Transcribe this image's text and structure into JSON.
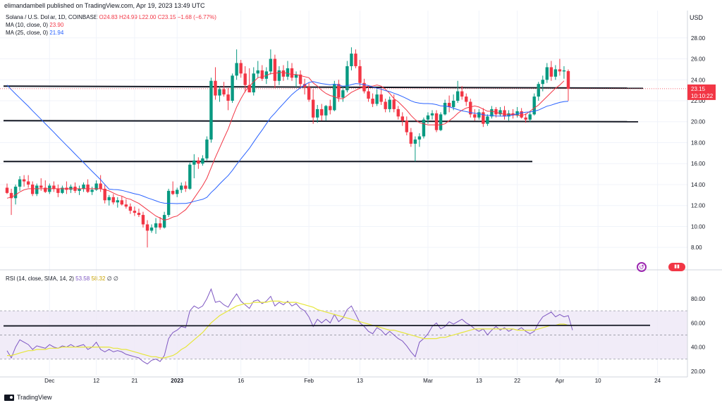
{
  "header": {
    "attribution": "elimandambell published on TradingView.com, Apr 19, 2023 13:49 UTC"
  },
  "legend": {
    "symbol": "Solana / U.S. Dollar, 1D, COINBASE",
    "ohlc": "O24.83 H24.99 L22.00 C23.15 −1.68 (−6.77%)",
    "ma10_label": "MA (10, close, 0)",
    "ma10_value": "23.90",
    "ma25_label": "MA (25, close, 0)",
    "ma25_value": "21.94",
    "rsi_label": "RSI (14, close, SMA, 14, 2)",
    "rsi_value": "53.58",
    "rsi_ma_value": "58.32",
    "rsi_extra": "∅ ∅"
  },
  "footer": {
    "brand": "TradingView"
  },
  "icons": {
    "replay": "replay-icon",
    "flag": "flag-icon"
  },
  "colors": {
    "up": "#089981",
    "down": "#f23645",
    "ma10": "#f23645",
    "ma25": "#2962ff",
    "rsi": "#7e57c2",
    "rsi_ma": "#e6e63a",
    "rsi_band": "#ede7f6"
  },
  "chart_data": [
    {
      "type": "candlestick",
      "currency_label": "USD",
      "price_axis_ticks": [
        "28.00",
        "26.00",
        "24.00",
        "22.00",
        "20.00",
        "18.00",
        "16.00",
        "14.00",
        "12.00",
        "10.00",
        "8.00"
      ],
      "ylim": [
        6.6,
        29.6
      ],
      "last_price": "23.15",
      "countdown": "10:10:22",
      "x_ticks": [
        {
          "label": "Dec",
          "i": 10
        },
        {
          "label": "12",
          "i": 21
        },
        {
          "label": "21",
          "i": 30
        },
        {
          "label": "2023",
          "i": 40
        },
        {
          "label": "16",
          "i": 55
        },
        {
          "label": "Feb",
          "i": 71
        },
        {
          "label": "13",
          "i": 83
        },
        {
          "label": "Mar",
          "i": 99
        },
        {
          "label": "13",
          "i": 111
        },
        {
          "label": "22",
          "i": 120
        },
        {
          "label": "Apr",
          "i": 130
        },
        {
          "label": "10",
          "i": 139
        },
        {
          "label": "24",
          "i": 153
        }
      ],
      "candles": [
        [
          13.7,
          14.1,
          13.1,
          13.2
        ],
        [
          13.2,
          13.6,
          11.1,
          12.7
        ],
        [
          12.7,
          14.0,
          12.1,
          13.8
        ],
        [
          13.8,
          14.8,
          13.4,
          14.5
        ],
        [
          14.5,
          14.9,
          13.8,
          14.3
        ],
        [
          14.3,
          14.9,
          13.7,
          14.0
        ],
        [
          14.0,
          14.3,
          12.9,
          13.1
        ],
        [
          13.1,
          14.1,
          12.9,
          13.9
        ],
        [
          13.9,
          14.6,
          13.4,
          13.7
        ],
        [
          13.7,
          14.4,
          13.2,
          13.3
        ],
        [
          13.3,
          14.1,
          13.1,
          13.9
        ],
        [
          13.9,
          14.3,
          13.3,
          13.6
        ],
        [
          13.6,
          14.0,
          12.8,
          13.2
        ],
        [
          13.2,
          13.9,
          13.1,
          13.7
        ],
        [
          13.7,
          14.3,
          13.1,
          13.5
        ],
        [
          13.5,
          14.0,
          13.2,
          13.8
        ],
        [
          13.8,
          14.2,
          13.2,
          13.4
        ],
        [
          13.4,
          13.9,
          13.0,
          13.6
        ],
        [
          13.6,
          14.2,
          13.3,
          14.0
        ],
        [
          14.0,
          14.5,
          13.2,
          13.3
        ],
        [
          13.3,
          13.8,
          13.0,
          13.5
        ],
        [
          13.5,
          14.4,
          13.4,
          14.1
        ],
        [
          14.1,
          14.9,
          13.3,
          13.6
        ],
        [
          13.6,
          14.0,
          12.2,
          12.5
        ],
        [
          12.5,
          13.0,
          12.0,
          12.8
        ],
        [
          12.8,
          13.1,
          12.1,
          12.3
        ],
        [
          12.3,
          12.8,
          11.8,
          12.5
        ],
        [
          12.5,
          12.9,
          12.0,
          12.1
        ],
        [
          12.1,
          12.6,
          11.7,
          11.9
        ],
        [
          11.9,
          12.2,
          11.2,
          11.5
        ],
        [
          11.5,
          11.9,
          11.0,
          11.3
        ],
        [
          11.3,
          11.7,
          10.9,
          11.1
        ],
        [
          11.1,
          11.4,
          9.9,
          10.2
        ],
        [
          10.2,
          10.6,
          8.0,
          9.6
        ],
        [
          9.6,
          10.2,
          9.4,
          9.9
        ],
        [
          9.9,
          10.8,
          9.3,
          10.3
        ],
        [
          10.3,
          10.9,
          9.7,
          9.9
        ],
        [
          9.9,
          11.4,
          9.8,
          11.1
        ],
        [
          11.1,
          13.6,
          10.9,
          13.4
        ],
        [
          13.4,
          14.3,
          13.0,
          13.1
        ],
        [
          13.1,
          13.7,
          12.8,
          13.5
        ],
        [
          13.5,
          14.2,
          13.2,
          13.9
        ],
        [
          13.9,
          14.3,
          13.3,
          13.6
        ],
        [
          13.6,
          16.1,
          13.5,
          15.9
        ],
        [
          15.9,
          16.9,
          14.6,
          16.3
        ],
        [
          16.3,
          16.6,
          15.5,
          16.0
        ],
        [
          16.0,
          16.8,
          15.8,
          16.5
        ],
        [
          16.5,
          18.6,
          16.3,
          18.3
        ],
        [
          18.3,
          24.2,
          18.0,
          23.9
        ],
        [
          23.9,
          25.2,
          22.1,
          22.5
        ],
        [
          22.5,
          23.4,
          21.9,
          23.1
        ],
        [
          23.1,
          23.8,
          22.4,
          22.6
        ],
        [
          22.6,
          23.2,
          21.1,
          22.0
        ],
        [
          22.0,
          24.6,
          21.8,
          24.4
        ],
        [
          24.4,
          26.9,
          24.0,
          25.6
        ],
        [
          25.6,
          25.9,
          24.2,
          24.6
        ],
        [
          24.6,
          25.3,
          22.8,
          23.5
        ],
        [
          23.5,
          25.1,
          22.9,
          22.8
        ],
        [
          22.8,
          25.2,
          22.5,
          24.6
        ],
        [
          24.6,
          25.8,
          24.2,
          24.9
        ],
        [
          24.9,
          25.4,
          23.9,
          24.1
        ],
        [
          24.1,
          25.2,
          23.6,
          24.8
        ],
        [
          24.8,
          26.9,
          24.5,
          26.0
        ],
        [
          26.0,
          26.4,
          23.2,
          23.9
        ],
        [
          23.9,
          25.3,
          23.5,
          24.9
        ],
        [
          24.9,
          25.4,
          23.9,
          24.3
        ],
        [
          24.3,
          25.8,
          24.0,
          25.1
        ],
        [
          25.1,
          25.6,
          23.9,
          24.2
        ],
        [
          24.2,
          24.8,
          23.3,
          24.5
        ],
        [
          24.5,
          24.9,
          23.2,
          23.6
        ],
        [
          23.6,
          24.1,
          22.6,
          23.3
        ],
        [
          23.3,
          23.7,
          21.9,
          22.1
        ],
        [
          22.1,
          23.1,
          19.8,
          20.4
        ],
        [
          20.4,
          21.6,
          19.9,
          21.2
        ],
        [
          21.2,
          21.7,
          20.1,
          20.6
        ],
        [
          20.6,
          21.6,
          20.1,
          21.5
        ],
        [
          21.5,
          22.1,
          20.7,
          21.1
        ],
        [
          21.1,
          23.9,
          21.0,
          23.6
        ],
        [
          23.6,
          24.0,
          21.9,
          22.3
        ],
        [
          22.3,
          23.4,
          21.9,
          23.0
        ],
        [
          23.0,
          25.8,
          22.8,
          25.3
        ],
        [
          25.3,
          27.1,
          24.9,
          26.5
        ],
        [
          26.5,
          26.9,
          25.1,
          25.3
        ],
        [
          25.3,
          25.9,
          23.4,
          23.7
        ],
        [
          23.7,
          24.1,
          22.7,
          22.9
        ],
        [
          22.9,
          23.4,
          21.9,
          22.2
        ],
        [
          22.2,
          22.7,
          21.4,
          21.7
        ],
        [
          21.7,
          23.1,
          21.5,
          22.6
        ],
        [
          22.6,
          23.2,
          21.6,
          21.9
        ],
        [
          21.9,
          22.2,
          20.9,
          21.2
        ],
        [
          21.2,
          22.4,
          20.9,
          22.1
        ],
        [
          22.1,
          22.6,
          20.9,
          21.2
        ],
        [
          21.2,
          21.5,
          20.2,
          20.5
        ],
        [
          20.5,
          20.9,
          19.6,
          20.1
        ],
        [
          20.1,
          20.5,
          18.7,
          19.0
        ],
        [
          19.0,
          19.4,
          17.6,
          17.9
        ],
        [
          17.9,
          18.6,
          16.2,
          18.3
        ],
        [
          18.3,
          18.9,
          17.6,
          18.6
        ],
        [
          18.6,
          20.4,
          18.4,
          20.2
        ],
        [
          20.2,
          20.9,
          19.8,
          20.6
        ],
        [
          20.6,
          21.1,
          20.2,
          20.8
        ],
        [
          20.8,
          21.1,
          19.0,
          19.2
        ],
        [
          19.2,
          20.9,
          19.1,
          20.7
        ],
        [
          20.7,
          22.1,
          20.6,
          21.8
        ],
        [
          21.8,
          22.5,
          20.9,
          21.4
        ],
        [
          21.4,
          22.6,
          21.1,
          22.0
        ],
        [
          22.0,
          23.9,
          21.8,
          22.9
        ],
        [
          22.9,
          23.4,
          22.1,
          22.4
        ],
        [
          22.4,
          22.7,
          21.5,
          21.9
        ],
        [
          21.9,
          22.2,
          20.4,
          20.7
        ],
        [
          20.7,
          21.2,
          20.1,
          20.4
        ],
        [
          20.4,
          21.2,
          20.2,
          20.9
        ],
        [
          20.9,
          21.3,
          19.5,
          19.8
        ],
        [
          19.8,
          20.7,
          19.6,
          20.5
        ],
        [
          20.5,
          21.5,
          20.3,
          21.2
        ],
        [
          21.2,
          21.4,
          20.4,
          20.7
        ],
        [
          20.7,
          21.4,
          20.5,
          21.1
        ],
        [
          21.1,
          21.5,
          20.2,
          20.5
        ],
        [
          20.5,
          21.1,
          20.1,
          20.8
        ],
        [
          20.8,
          21.2,
          20.3,
          20.6
        ],
        [
          20.6,
          21.4,
          20.4,
          21.0
        ],
        [
          21.0,
          21.3,
          20.3,
          20.4
        ],
        [
          20.4,
          20.8,
          19.9,
          20.2
        ],
        [
          20.2,
          20.9,
          20.0,
          20.7
        ],
        [
          20.7,
          22.7,
          20.6,
          22.4
        ],
        [
          22.4,
          23.8,
          22.0,
          23.6
        ],
        [
          23.6,
          24.4,
          22.9,
          24.0
        ],
        [
          24.0,
          25.6,
          23.7,
          25.2
        ],
        [
          25.2,
          25.8,
          23.9,
          24.3
        ],
        [
          24.3,
          25.4,
          24.0,
          25.0
        ],
        [
          25.0,
          26.0,
          24.4,
          24.8
        ],
        [
          24.8,
          25.3,
          24.1,
          24.9
        ],
        [
          24.83,
          24.99,
          22.0,
          23.15
        ]
      ],
      "ma10": [
        12.7,
        12.8,
        13.0,
        13.3,
        13.5,
        13.6,
        13.6,
        13.6,
        13.6,
        13.6,
        13.6,
        13.6,
        13.6,
        13.6,
        13.6,
        13.6,
        13.6,
        13.6,
        13.6,
        13.6,
        13.6,
        13.6,
        13.6,
        13.5,
        13.4,
        13.2,
        13.0,
        12.9,
        12.7,
        12.6,
        12.4,
        12.2,
        11.9,
        11.6,
        11.3,
        11.0,
        10.8,
        10.6,
        10.7,
        10.9,
        11.0,
        11.3,
        11.6,
        12.1,
        12.7,
        13.3,
        13.9,
        14.6,
        15.6,
        16.6,
        17.5,
        18.4,
        19.3,
        20.4,
        21.4,
        22.2,
        22.9,
        23.4,
        23.8,
        24.2,
        24.3,
        24.4,
        24.6,
        24.6,
        24.7,
        24.7,
        24.6,
        24.5,
        24.5,
        24.4,
        24.3,
        24.2,
        23.7,
        23.4,
        23.0,
        22.7,
        22.5,
        22.4,
        22.2,
        22.2,
        22.5,
        22.8,
        23.0,
        23.2,
        23.3,
        23.4,
        23.4,
        23.5,
        23.4,
        23.1,
        22.7,
        22.2,
        21.9,
        21.5,
        21.1,
        20.6,
        20.2,
        19.9,
        19.8,
        19.7,
        19.7,
        19.7,
        19.7,
        19.8,
        20.1,
        20.4,
        20.8,
        21.1,
        21.3,
        21.4,
        21.5,
        21.4,
        21.2,
        21.0,
        21.0,
        20.9,
        20.8,
        20.7,
        20.7,
        20.7,
        20.6,
        20.6,
        20.7,
        21.0,
        21.3,
        21.6,
        22.0,
        22.4,
        22.8,
        23.2,
        23.5,
        23.9
      ]
    },
    {
      "type": "line",
      "name": "RSI",
      "axis_ticks": [
        "80.00",
        "60.00",
        "40.00",
        "20.00"
      ],
      "ylim": [
        17,
        94
      ],
      "band": [
        30,
        70
      ],
      "midline": 50,
      "rsi": [
        37,
        31,
        40,
        46,
        44,
        42,
        38,
        41,
        40,
        39,
        42,
        40,
        39,
        41,
        40,
        42,
        40,
        41,
        42,
        38,
        40,
        44,
        38,
        36,
        38,
        36,
        37,
        36,
        34,
        33,
        32,
        31,
        28,
        26,
        29,
        30,
        28,
        33,
        47,
        52,
        54,
        57,
        56,
        70,
        74,
        72,
        74,
        80,
        88,
        77,
        78,
        75,
        73,
        79,
        84,
        78,
        75,
        72,
        78,
        79,
        76,
        78,
        82,
        74,
        77,
        75,
        78,
        74,
        76,
        72,
        70,
        65,
        57,
        63,
        60,
        63,
        60,
        67,
        61,
        64,
        71,
        74,
        67,
        60,
        57,
        53,
        51,
        56,
        54,
        50,
        53,
        50,
        47,
        45,
        41,
        36,
        32,
        44,
        47,
        51,
        57,
        60,
        55,
        57,
        61,
        59,
        61,
        63,
        60,
        58,
        55,
        53,
        55,
        50,
        54,
        57,
        54,
        56,
        53,
        55,
        54,
        56,
        53,
        51,
        53,
        60,
        65,
        67,
        69,
        65,
        67,
        65,
        66,
        54
      ],
      "rsi_ma": [
        33,
        33,
        34,
        35,
        36,
        37,
        37,
        38,
        38,
        38,
        39,
        39,
        39,
        40,
        40,
        40,
        40,
        40,
        40,
        40,
        40,
        40,
        40,
        40,
        40,
        39,
        39,
        38,
        38,
        37,
        36,
        35,
        34,
        33,
        32,
        32,
        31,
        31,
        32,
        33,
        35,
        38,
        40,
        43,
        46,
        49,
        52,
        56,
        60,
        63,
        66,
        68,
        70,
        72,
        74,
        75,
        76,
        76,
        77,
        77,
        77,
        77,
        78,
        78,
        78,
        77,
        77,
        77,
        77,
        76,
        75,
        74,
        73,
        71,
        70,
        69,
        68,
        67,
        66,
        65,
        64,
        63,
        62,
        61,
        60,
        59,
        58,
        57,
        56,
        55,
        54,
        54,
        53,
        52,
        51,
        50,
        49,
        48,
        47,
        47,
        47,
        47,
        48,
        48,
        49,
        50,
        51,
        52,
        53,
        54,
        55,
        55,
        55,
        55,
        55,
        55,
        55,
        55,
        55,
        55,
        54,
        54,
        54,
        54,
        54,
        55,
        56,
        57,
        58,
        58,
        59,
        59,
        58,
        58
      ]
    }
  ]
}
